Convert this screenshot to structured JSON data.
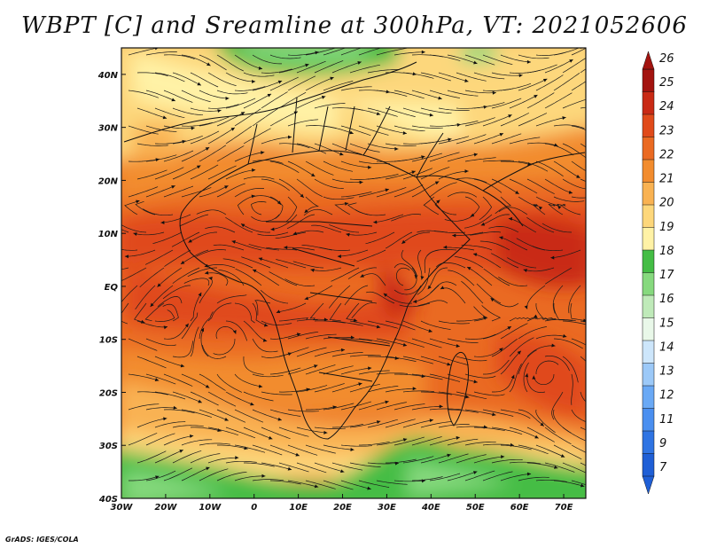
{
  "title": "WBPT [C] and Sreamline at 300hPa, VT: 2021052606",
  "credit": "GrADS: IGES/COLA",
  "map": {
    "lon_range": [
      -30,
      75
    ],
    "lat_range": [
      -40,
      45
    ],
    "lon_ticks": [
      {
        "value": -30,
        "label": "30W"
      },
      {
        "value": -20,
        "label": "20W"
      },
      {
        "value": -10,
        "label": "10W"
      },
      {
        "value": 0,
        "label": "0"
      },
      {
        "value": 10,
        "label": "10E"
      },
      {
        "value": 20,
        "label": "20E"
      },
      {
        "value": 30,
        "label": "30E"
      },
      {
        "value": 40,
        "label": "40E"
      },
      {
        "value": 50,
        "label": "50E"
      },
      {
        "value": 60,
        "label": "60E"
      },
      {
        "value": 70,
        "label": "70E"
      }
    ],
    "lat_ticks": [
      {
        "value": 40,
        "label": "40N"
      },
      {
        "value": 30,
        "label": "30N"
      },
      {
        "value": 20,
        "label": "20N"
      },
      {
        "value": 10,
        "label": "10N"
      },
      {
        "value": 0,
        "label": "EQ"
      },
      {
        "value": -10,
        "label": "10S"
      },
      {
        "value": -20,
        "label": "20S"
      },
      {
        "value": -30,
        "label": "30S"
      },
      {
        "value": -40,
        "label": "40S"
      }
    ]
  },
  "colorbar": {
    "labels": [
      "7",
      "9",
      "11",
      "12",
      "13",
      "14",
      "15",
      "16",
      "17",
      "18",
      "19",
      "20",
      "21",
      "22",
      "23",
      "24",
      "25",
      "26"
    ],
    "colors": [
      "#1f5fd6",
      "#2f74e3",
      "#4a8ff0",
      "#6aa9f5",
      "#9cc9f8",
      "#cde6fb",
      "#e9f8e9",
      "#bfeab9",
      "#86d97e",
      "#44bd45",
      "#fff2a6",
      "#fdd77b",
      "#f9b252",
      "#f28c2e",
      "#ea6a22",
      "#e04a1a",
      "#c92a15",
      "#a3130f"
    ]
  }
}
